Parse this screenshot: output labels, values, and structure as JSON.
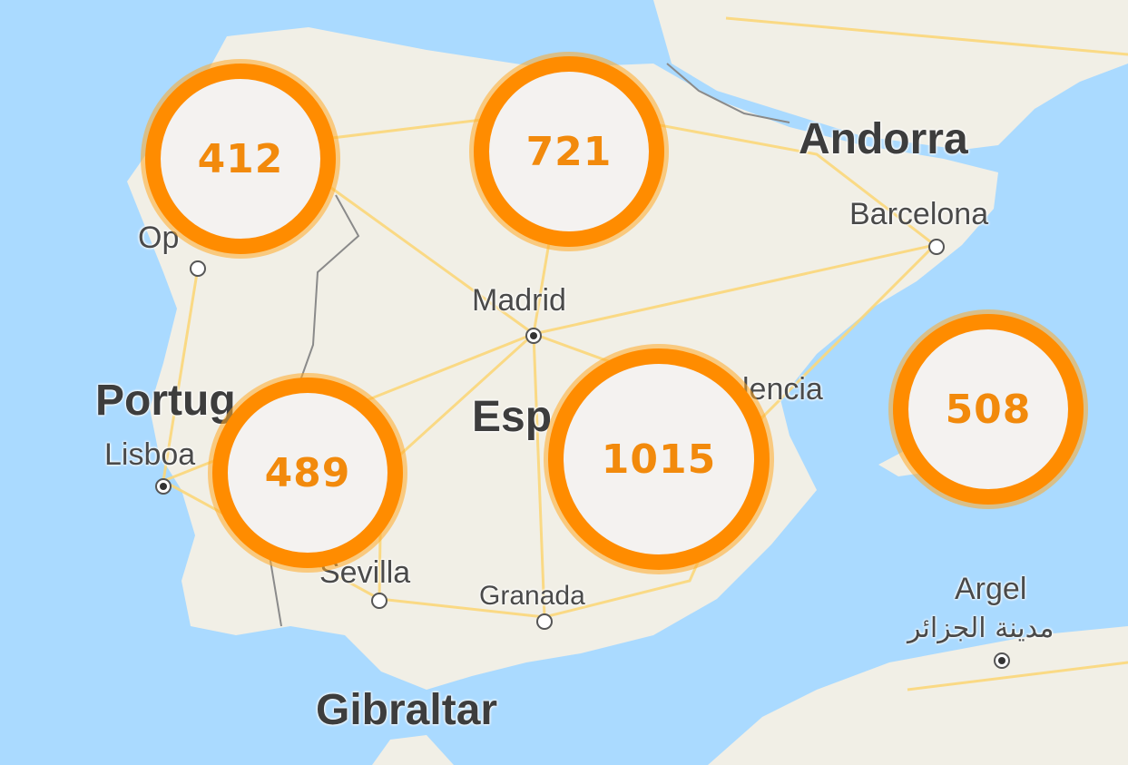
{
  "map": {
    "colors": {
      "water": "#aadaff",
      "land": "#f2f0e8",
      "roads": "#fbd77a",
      "border": "#8a8a8a",
      "cluster_ring": "#ff8c00",
      "cluster_text": "#f28a0c"
    },
    "labels": {
      "andorra": "Andorra",
      "barcelona": "Barcelona",
      "madrid": "Madrid",
      "valencia": "lencia",
      "espana": "Esp",
      "portugal": "Portug",
      "lisboa": "Lisboa",
      "porto": "Op",
      "sevilla": "Sevilla",
      "granada": "Granada",
      "gibraltar": "Gibraltar",
      "argel": "Argel",
      "argel_ar": "مدينة الجزائر"
    },
    "clusters": [
      {
        "id": "galicia",
        "count": "412"
      },
      {
        "id": "north",
        "count": "721"
      },
      {
        "id": "southwest",
        "count": "489"
      },
      {
        "id": "southeast",
        "count": "1015"
      },
      {
        "id": "balearic",
        "count": "508"
      }
    ]
  }
}
